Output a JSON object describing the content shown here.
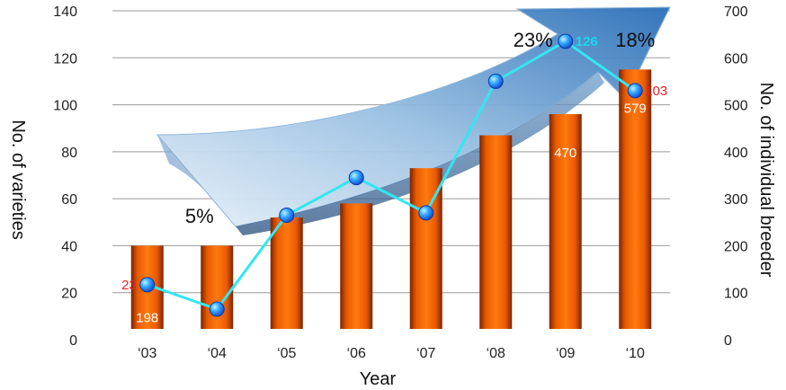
{
  "chart_data": {
    "type": "bar",
    "categories": [
      "‘03",
      "‘04",
      "‘05",
      "‘06",
      "‘07",
      "‘08",
      "‘09",
      "‘10"
    ],
    "series": [
      {
        "axis": "left",
        "type": "bar",
        "values": [
          40,
          40,
          52,
          58,
          73,
          87,
          96,
          115
        ],
        "color": "#ff6a00"
      },
      {
        "axis": "right",
        "type": "line",
        "values": [
          117,
          65,
          265,
          345,
          270,
          550,
          635,
          530
        ],
        "color": "#33e6f0",
        "marker_color": "#1a5fe0"
      }
    ],
    "xlabel": "Year",
    "ylabel": "No. of varieties",
    "y2label": "No. of individual breeder",
    "ylim": [
      0,
      140
    ],
    "y2lim": [
      0,
      700
    ],
    "yticks": [
      "0",
      "20",
      "40",
      "60",
      "80",
      "100",
      "120",
      "140"
    ],
    "y2ticks": [
      "0",
      "100",
      "200",
      "300",
      "400",
      "500",
      "600",
      "700"
    ],
    "grid": true,
    "bar_labels": [
      {
        "index": 0,
        "text": "198"
      },
      {
        "index": 6,
        "text": "470"
      },
      {
        "index": 7,
        "text": "579"
      }
    ],
    "point_labels": [
      {
        "index": 0,
        "text": "23",
        "style": "red",
        "side": "left"
      },
      {
        "index": 6,
        "text": "126",
        "style": "cyan",
        "side": "right"
      },
      {
        "index": 7,
        "text": "103",
        "style": "red",
        "side": "right"
      }
    ],
    "annotations": [
      {
        "index": 0,
        "text": "5%"
      },
      {
        "index": 6,
        "text": "23%"
      },
      {
        "index": 7,
        "text": "18%"
      }
    ],
    "decorations": [
      "upward-growth-arrow"
    ]
  }
}
